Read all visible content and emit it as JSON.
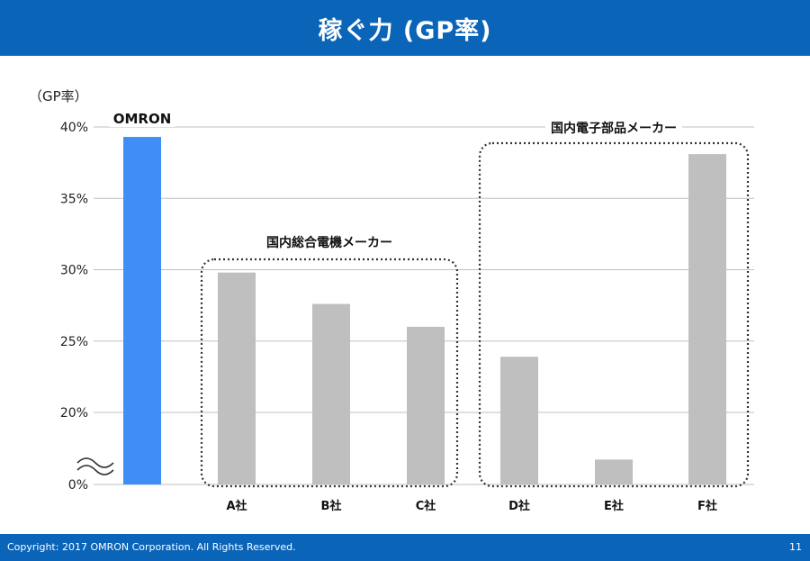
{
  "header": {
    "title": "稼ぐ力 (GP率)"
  },
  "footer": {
    "copyright": "Copyright: 2017 OMRON Corporation. All Rights Reserved.",
    "page_number": "11"
  },
  "colors": {
    "header": "#0a64b8",
    "omron_bar": "#3f8ef7",
    "peer_bar": "#bfbfbf",
    "grid": "#bfbfbf"
  },
  "chart_data": {
    "type": "bar",
    "ylabel": "（GP率）",
    "yticks": [
      "0%",
      "20%",
      "25%",
      "30%",
      "35%",
      "40%"
    ],
    "axis_break": true,
    "ylim": [
      15,
      40
    ],
    "grid": true,
    "categories": [
      "OMRON",
      "A社",
      "B社",
      "C社",
      "D社",
      "E社",
      "F社"
    ],
    "values": [
      39.3,
      29.8,
      27.6,
      26.0,
      23.9,
      16.7,
      38.1
    ],
    "highlight_label": "OMRON",
    "groups": [
      {
        "label": "国内総合電機メーカー",
        "categories": [
          "A社",
          "B社",
          "C社"
        ]
      },
      {
        "label": "国内電子部品メーカー",
        "categories": [
          "D社",
          "E社",
          "F社"
        ]
      }
    ]
  }
}
